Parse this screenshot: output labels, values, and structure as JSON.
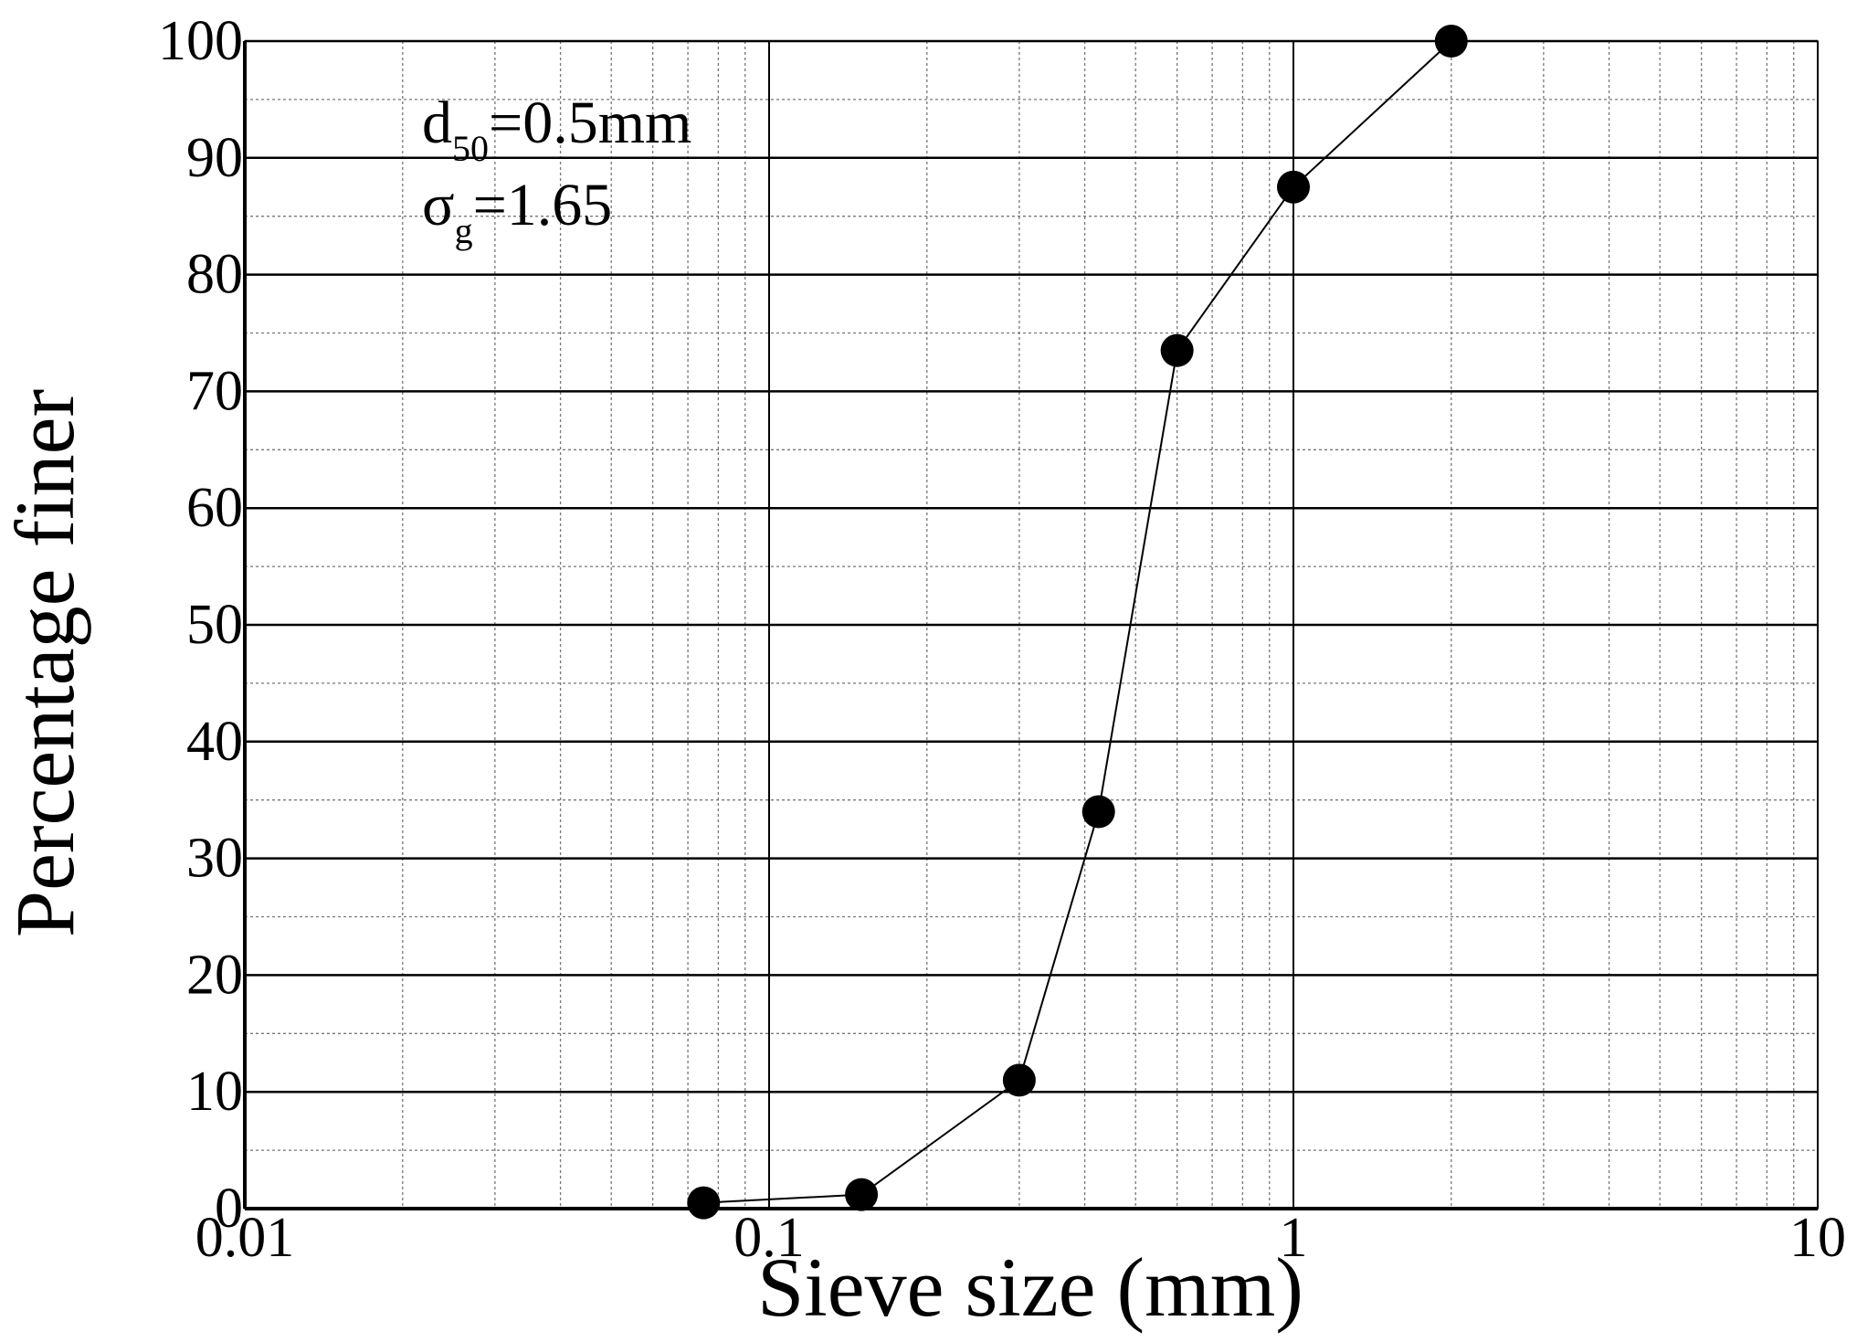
{
  "chart_data": {
    "type": "line",
    "x_label": "Sieve size (mm)",
    "y_label": "Percentage finer",
    "x": [
      0.075,
      0.15,
      0.3,
      0.425,
      0.6,
      1,
      2
    ],
    "series": [
      {
        "color": "#000000",
        "values": [
          0.5,
          1.2,
          11,
          34,
          73.5,
          87.5,
          100
        ]
      }
    ],
    "xscale": "log",
    "xlim": [
      0.01,
      10
    ],
    "xticks": [
      0.01,
      0.1,
      1,
      10
    ],
    "ylim": [
      0,
      100
    ],
    "yticks": [
      0,
      10,
      20,
      30,
      40,
      50,
      60,
      70,
      80,
      90,
      100
    ],
    "grid": true,
    "minor_grid": true,
    "annotations": [
      {
        "symbol": "d",
        "subscript": "50",
        "text": "=0.5mm"
      },
      {
        "symbol": "σ",
        "subscript": "g",
        "text": "=1.65"
      }
    ]
  }
}
